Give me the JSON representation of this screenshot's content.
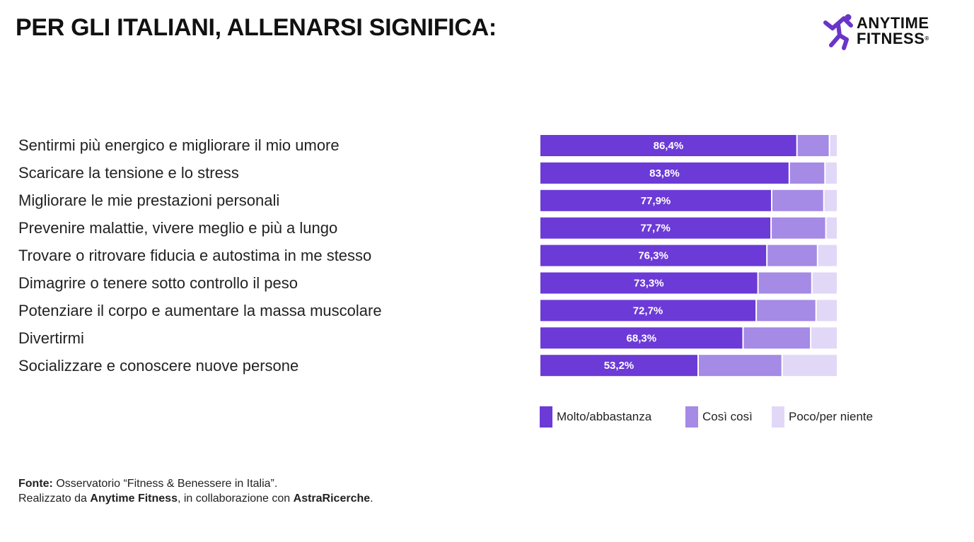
{
  "header": {
    "title": "PER GLI ITALIANI, ALLENARSI SIGNIFICA:",
    "logo_line1": "ANYTIME",
    "logo_line2": "FITNESS",
    "logo_reg": "®"
  },
  "colors": {
    "dark": "#6c3ad6",
    "mid": "#a58ae6",
    "light": "#e1d8f7",
    "logo": "#6a34c8"
  },
  "chart_data": {
    "type": "bar",
    "orientation": "horizontal",
    "stacked": true,
    "title": "PER GLI ITALIANI, ALLENARSI SIGNIFICA:",
    "xlim": [
      0,
      100
    ],
    "categories": [
      "Sentirmi più energico e migliorare il mio umore",
      "Scaricare la tensione e lo stress",
      "Migliorare le mie prestazioni personali",
      "Prevenire malattie, vivere meglio e più a lungo",
      "Trovare o ritrovare fiducia e autostima in me stesso",
      "Dimagrire o tenere sotto controllo il peso",
      "Potenziare il corpo e aumentare la massa muscolare",
      "Divertirmi",
      "Socializzare e conoscere nuove persone"
    ],
    "series": [
      {
        "name": "Molto/abbastanza",
        "color": "#6c3ad6",
        "values": [
          86.4,
          83.8,
          77.9,
          77.7,
          76.3,
          73.3,
          72.7,
          68.3,
          53.2
        ],
        "labels": [
          "86,4%",
          "83,8%",
          "77,9%",
          "77,7%",
          "76,3%",
          "73,3%",
          "72,7%",
          "68,3%",
          "53,2%"
        ]
      },
      {
        "name": "Così così",
        "color": "#a58ae6",
        "values": [
          10.9,
          12.0,
          17.5,
          18.4,
          17.0,
          18.1,
          20.1,
          22.7,
          28.2
        ]
      },
      {
        "name": "Poco/per niente",
        "color": "#e1d8f7",
        "values": [
          2.7,
          4.2,
          4.6,
          3.9,
          6.7,
          8.6,
          7.2,
          9.0,
          18.6
        ]
      }
    ],
    "legend_position": "bottom"
  },
  "footer": {
    "source_label": "Fonte:",
    "source_text": " Osservatorio “Fitness & Benessere in Italia”.",
    "made_prefix": "Realizzato da ",
    "made_brand": "Anytime Fitness",
    "made_middle": ", in collaborazione con ",
    "made_partner": "AstraRicerche",
    "made_suffix": "."
  }
}
